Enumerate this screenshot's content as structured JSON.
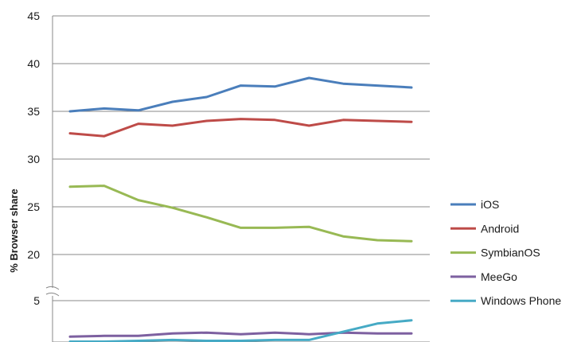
{
  "chart_data": {
    "type": "line",
    "title": "",
    "xlabel": "",
    "ylabel": "% Browser share",
    "axis_break": {
      "from": 5,
      "to": 20
    },
    "yticks": [
      45,
      40,
      35,
      30,
      25,
      20,
      5
    ],
    "ylim": [
      0,
      45
    ],
    "grid": true,
    "legend_position": "right",
    "x": [
      1,
      2,
      3,
      4,
      5,
      6,
      7,
      8,
      9,
      10,
      11
    ],
    "series": [
      {
        "name": "iOS",
        "color": "#4a7ebb",
        "values": [
          35.0,
          35.3,
          35.1,
          36.0,
          36.5,
          37.7,
          37.6,
          38.5,
          37.9,
          37.7,
          37.5
        ]
      },
      {
        "name": "Android",
        "color": "#be4b48",
        "values": [
          32.7,
          32.4,
          33.7,
          33.5,
          34.0,
          34.2,
          34.1,
          33.5,
          34.1,
          34.0,
          33.9
        ]
      },
      {
        "name": "SymbianOS",
        "color": "#98b954",
        "values": [
          27.1,
          27.2,
          25.7,
          24.9,
          23.9,
          22.8,
          22.8,
          22.9,
          21.9,
          21.5,
          21.4
        ]
      },
      {
        "name": "MeeGo",
        "color": "#7d60a0",
        "values": [
          0.6,
          0.7,
          0.7,
          1.0,
          1.1,
          0.9,
          1.1,
          0.9,
          1.1,
          1.0,
          1.0
        ]
      },
      {
        "name": "Windows Phone",
        "color": "#46aac5",
        "values": [
          0.0,
          0.0,
          0.1,
          0.2,
          0.1,
          0.1,
          0.2,
          0.2,
          1.2,
          2.2,
          2.6
        ]
      }
    ]
  }
}
